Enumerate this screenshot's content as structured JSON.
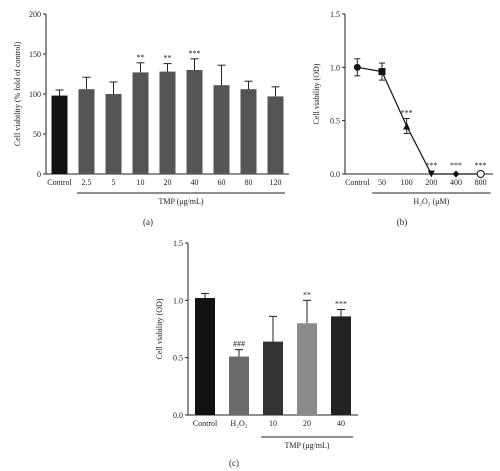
{
  "chart_data": [
    {
      "panel": "(a)",
      "type": "bar",
      "ylabel": "Cell viability (% fold of control)",
      "ylim": [
        0,
        200
      ],
      "yticks": [
        "0",
        "50",
        "100",
        "150",
        "200"
      ],
      "categories": [
        "Control",
        "2.5",
        "5",
        "10",
        "20",
        "40",
        "60",
        "80",
        "120"
      ],
      "values": [
        98,
        106,
        100,
        127,
        128,
        130,
        111,
        106,
        97
      ],
      "errors": [
        7,
        15,
        15,
        12,
        10,
        14,
        25,
        10,
        12
      ],
      "significance": [
        "",
        "",
        "",
        "**",
        "**",
        "***",
        "",
        "",
        ""
      ],
      "group_label": "TMP (μg/mL)",
      "colors": [
        "#111111",
        "#555555",
        "#555555",
        "#555555",
        "#555555",
        "#555555",
        "#555555",
        "#555555",
        "#555555"
      ]
    },
    {
      "panel": "(b)",
      "type": "line",
      "ylabel": "Cell viability (OD)",
      "ylim": [
        0,
        1.5
      ],
      "yticks": [
        "0.0",
        "0.5",
        "1.0",
        "1.5"
      ],
      "categories": [
        "Control",
        "50",
        "100",
        "200",
        "400",
        "800"
      ],
      "values": [
        1.0,
        0.96,
        0.45,
        0.0,
        0.0,
        0.0
      ],
      "errors": [
        0.08,
        0.08,
        0.07,
        0,
        0,
        0
      ],
      "markers": [
        "circle",
        "square",
        "triangle-up",
        "triangle-down",
        "diamond",
        "circle-open"
      ],
      "significance": [
        "",
        "",
        "***",
        "***",
        "***",
        "***"
      ],
      "group_label": "H₂O₂ (μM)"
    },
    {
      "panel": "(c)",
      "type": "bar",
      "ylabel": "Cell viability (OD)",
      "ylim": [
        0,
        1.5
      ],
      "yticks": [
        "0.0",
        "0.5",
        "1.0",
        "1.5"
      ],
      "categories": [
        "Control",
        "H₂O₂",
        "10",
        "20",
        "40"
      ],
      "values": [
        1.02,
        0.51,
        0.64,
        0.8,
        0.86
      ],
      "errors": [
        0.04,
        0.06,
        0.22,
        0.2,
        0.06
      ],
      "significance": [
        "",
        "###",
        "",
        "**",
        "***"
      ],
      "group_label": "TMP (μg/mL)",
      "colors": [
        "#111111",
        "#6b6b6b",
        "#333333",
        "#8a8a8a",
        "#222222"
      ]
    }
  ]
}
